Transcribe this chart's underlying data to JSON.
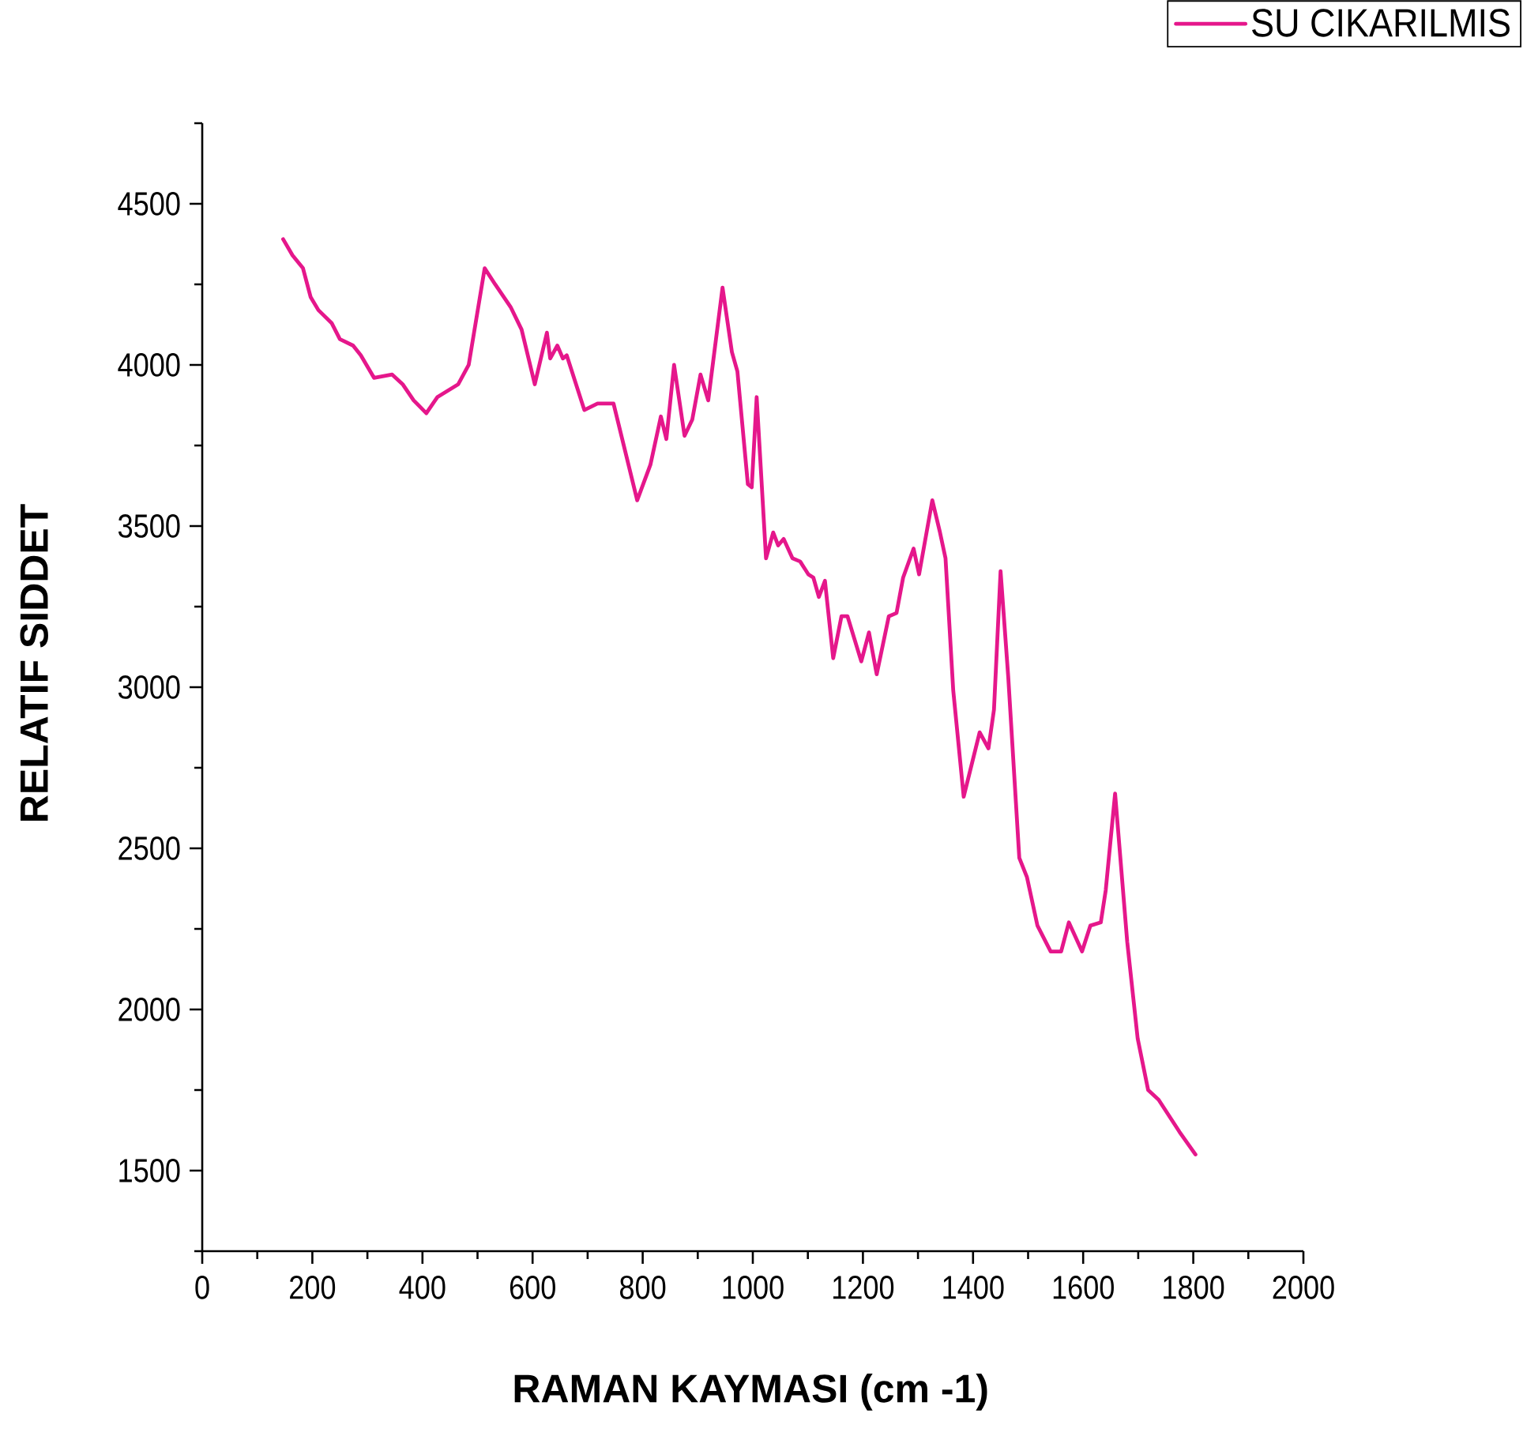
{
  "chart_data": {
    "type": "line",
    "xlabel": "RAMAN KAYMASI (cm -1)",
    "ylabel": "RELATIF SIDDET",
    "legend": "top right",
    "xlim": [
      0,
      2000
    ],
    "ylim": [
      1250,
      4750
    ],
    "xticks": [
      0,
      {
        "value": 100,
        "label": null
      },
      200,
      {
        "value": 300,
        "label": null
      },
      400,
      {
        "value": 500,
        "label": null
      },
      600,
      {
        "value": 700,
        "label": null
      },
      800,
      {
        "value": 900,
        "label": null
      },
      1000,
      {
        "value": 1100,
        "label": null
      },
      1200,
      {
        "value": 1300,
        "label": null
      },
      1400,
      {
        "value": 1500,
        "label": null
      },
      1600,
      {
        "value": 1700,
        "label": null
      },
      1800,
      {
        "value": 1900,
        "label": null
      },
      2000
    ],
    "yticks": [
      {
        "value": 1250,
        "label": null
      },
      1500,
      {
        "value": 1750,
        "label": null
      },
      2000,
      {
        "value": 2250,
        "label": null
      },
      2500,
      {
        "value": 2750,
        "label": null
      },
      3000,
      {
        "value": 3250,
        "label": null
      },
      3500,
      {
        "value": 3750,
        "label": null
      },
      4000,
      {
        "value": 4250,
        "label": null
      },
      4500,
      {
        "value": 4750,
        "label": null
      }
    ],
    "series": [
      {
        "name": "SU CIKARILMIS",
        "color": "#e5178b",
        "x": [
          147,
          164,
          183,
          197,
          211,
          235,
          250,
          274,
          288,
          312,
          345,
          364,
          384,
          407,
          427,
          465,
          484,
          513,
          532,
          560,
          580,
          604,
          626,
          632,
          645,
          655,
          662,
          694,
          718,
          747,
          790,
          814,
          833,
          843,
          857,
          876,
          890,
          905,
          919,
          945,
          962,
          972,
          991,
          998,
          1007,
          1024,
          1037,
          1046,
          1056,
          1072,
          1086,
          1101,
          1110,
          1120,
          1131,
          1146,
          1161,
          1172,
          1197,
          1211,
          1225,
          1247,
          1261,
          1273,
          1292,
          1302,
          1326,
          1340,
          1350,
          1364,
          1383,
          1412,
          1428,
          1438,
          1450,
          1464,
          1484,
          1498,
          1517,
          1541,
          1560,
          1574,
          1598,
          1613,
          1632,
          1641,
          1658,
          1680,
          1699,
          1718,
          1737,
          1775,
          1804
        ],
        "values": [
          4390,
          4340,
          4300,
          4210,
          4170,
          4130,
          4080,
          4060,
          4030,
          3960,
          3970,
          3940,
          3890,
          3850,
          3900,
          3940,
          4000,
          4300,
          4250,
          4180,
          4110,
          3940,
          4100,
          4020,
          4060,
          4020,
          4030,
          3860,
          3880,
          3880,
          3580,
          3690,
          3840,
          3770,
          4000,
          3780,
          3830,
          3970,
          3890,
          4240,
          4040,
          3980,
          3630,
          3620,
          3900,
          3400,
          3480,
          3440,
          3460,
          3400,
          3390,
          3350,
          3340,
          3280,
          3330,
          3090,
          3220,
          3220,
          3080,
          3170,
          3040,
          3220,
          3230,
          3340,
          3430,
          3350,
          3580,
          3480,
          3400,
          2990,
          2660,
          2860,
          2810,
          2930,
          3360,
          3030,
          2470,
          2410,
          2260,
          2180,
          2180,
          2270,
          2180,
          2260,
          2270,
          2370,
          2670,
          2210,
          1910,
          1750,
          1720,
          1620,
          1550
        ]
      }
    ]
  }
}
